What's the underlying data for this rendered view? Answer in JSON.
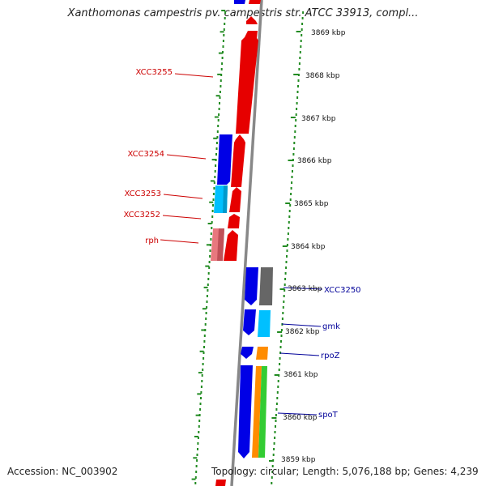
{
  "title": "Xanthomonas campestris pv. campestris str. ATCC 33913, compl...",
  "footer": {
    "accession": "Accession: NC_003902",
    "topology": "Topology: circular; Length: 5,076,188 bp; Genes: 4,239"
  },
  "colors": {
    "forward_cds": "#e60000",
    "reverse_cds": "#0000e6",
    "light_blue": "#00c0ff",
    "pink": "#e8787e",
    "gray_gene": "#666666",
    "orange_gene": "#ff8c00",
    "green_gene": "#33cc33",
    "axis": "#888888",
    "tick_green": "#228b22",
    "left_label": "#cc0000",
    "right_label": "#000099"
  },
  "scale_labels": [
    "3869 kbp",
    "3868 kbp",
    "3867 kbp",
    "3866 kbp",
    "3865 kbp",
    "3864 kbp",
    "3863 kbp",
    "3862 kbp",
    "3861 kbp",
    "3860 kbp",
    "3859 kbp"
  ],
  "left_gene_labels": [
    "XCC3255",
    "XCC3254",
    "XCC3253",
    "XCC3252",
    "rph"
  ],
  "right_gene_labels": [
    "XCC3250",
    "gmk",
    "rpoZ",
    "spoT"
  ]
}
